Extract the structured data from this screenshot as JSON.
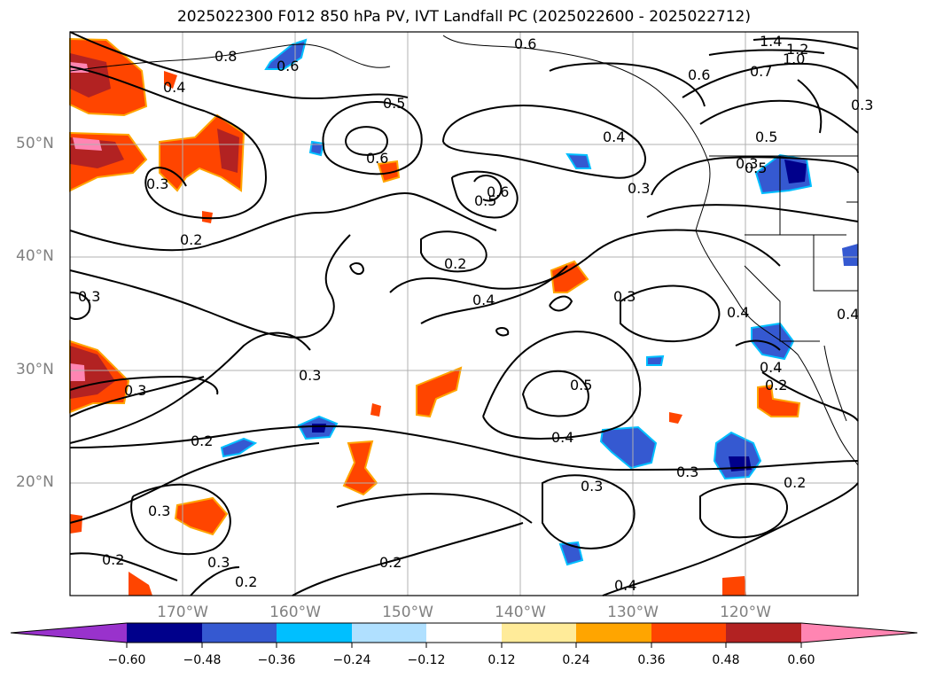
{
  "title": "2025022300 F012 850 hPa PV, IVT Landfall PC (2025022600 - 2025022712)",
  "map": {
    "lat_labels": [
      "50°N",
      "40°N",
      "30°N",
      "20°N"
    ],
    "lon_labels": [
      "170°W",
      "160°W",
      "150°W",
      "140°W",
      "130°W",
      "120°W"
    ],
    "contour_labels": [
      "0.8",
      "0.4",
      "0.6",
      "0.3",
      "0.2",
      "0.5",
      "0.6",
      "0.5",
      "0.6",
      "0.2",
      "0.4",
      "0.3",
      "0.4",
      "0.3",
      "0.5",
      "1.4",
      "1.2",
      "1.0",
      "0.6",
      "0.7",
      "0.5",
      "0.3",
      "0.3",
      "0.2",
      "0.3",
      "0.4",
      "0.5",
      "0.4",
      "0.3",
      "0.3",
      "0.2",
      "0.3",
      "0.2",
      "0.3",
      "0.2",
      "0.2",
      "0.4",
      "0.4",
      "0.4",
      "0.2",
      "0.3",
      "0.6",
      "0.3"
    ],
    "extent": {
      "lon_min": -180,
      "lon_max": -110,
      "lat_min": 10,
      "lat_max": 60
    },
    "grid_color": "#b0b0b0"
  },
  "colorbar": {
    "labels": [
      "−0.60",
      "−0.48",
      "−0.36",
      "−0.24",
      "−0.12",
      "0.12",
      "0.24",
      "0.36",
      "0.48",
      "0.60"
    ],
    "colors": [
      "#9932cc",
      "#00008b",
      "#3559d1",
      "#00bfff",
      "#b0e0ff",
      "#ffffff",
      "#ffeb99",
      "#ffa500",
      "#ff4500",
      "#b22222",
      "#ff85b2"
    ]
  }
}
